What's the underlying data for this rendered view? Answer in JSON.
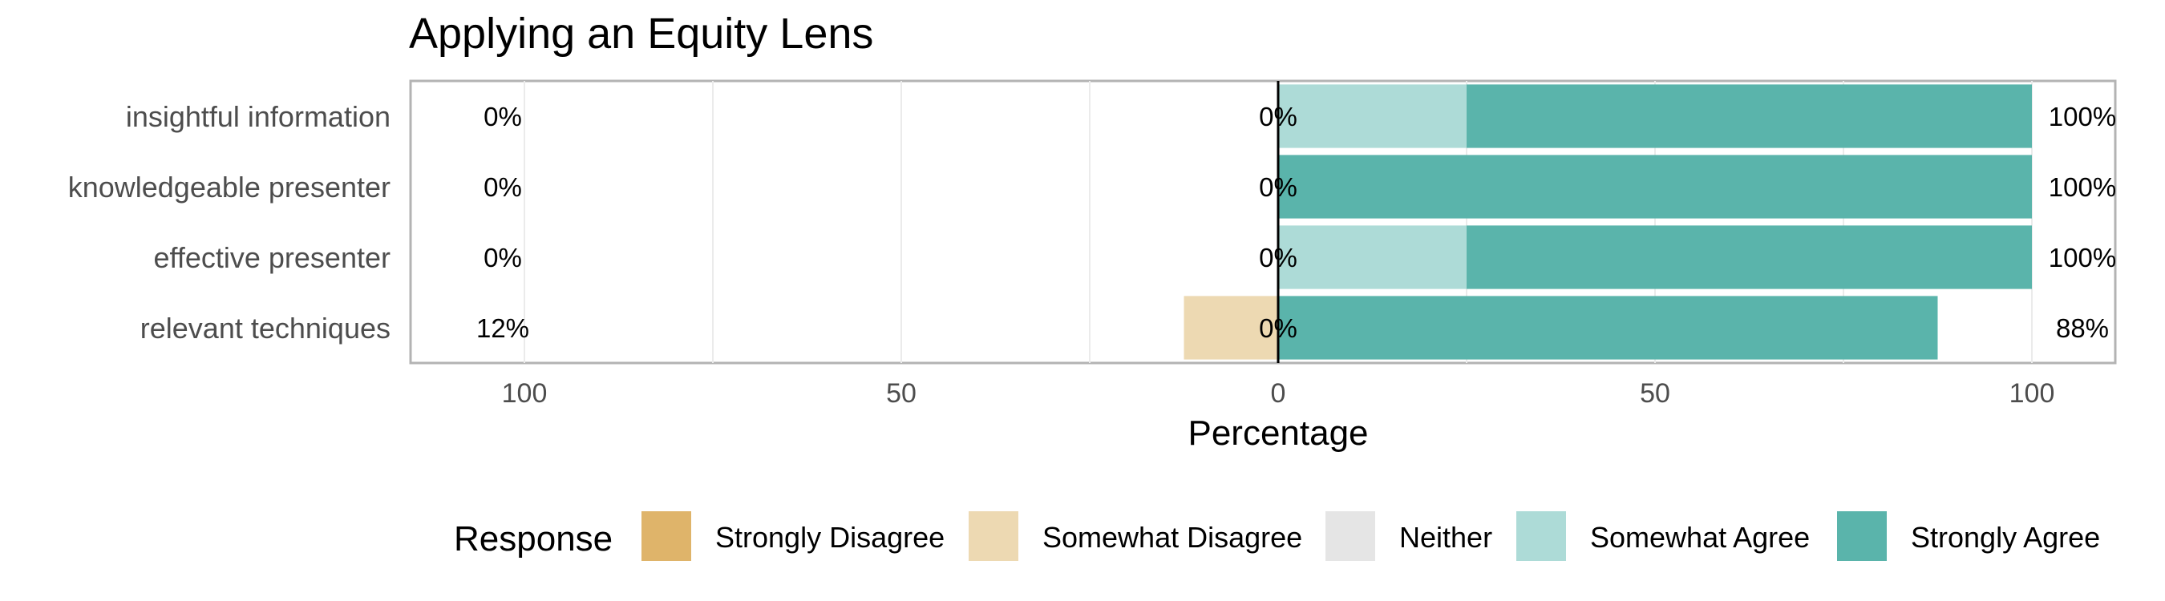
{
  "chart_data": {
    "type": "bar",
    "subtype": "diverging-stacked-horizontal",
    "title": "Applying an Equity Lens",
    "xlabel": "Percentage",
    "ylabel": "",
    "xlim": [
      -100,
      100
    ],
    "xticks": [
      -100,
      -50,
      0,
      50,
      100
    ],
    "xtick_labels": [
      "100",
      "50",
      "0",
      "50",
      "100"
    ],
    "grid": true,
    "categories": [
      "insightful information",
      "knowledgeable presenter",
      "effective presenter",
      "relevant techniques"
    ],
    "series": [
      {
        "name": "Strongly Disagree",
        "color": "#DFB46A",
        "values": [
          0,
          0,
          0,
          0
        ]
      },
      {
        "name": "Somewhat Disagree",
        "color": "#EDD9B2",
        "values": [
          0,
          0,
          0,
          12.5
        ]
      },
      {
        "name": "Neither",
        "color": "#E5E5E5",
        "values": [
          0,
          0,
          0,
          0
        ]
      },
      {
        "name": "Somewhat Agree",
        "color": "#ADDBD7",
        "values": [
          25,
          0,
          25,
          0
        ]
      },
      {
        "name": "Strongly Agree",
        "color": "#5AB4AB",
        "values": [
          75,
          100,
          75,
          87.5
        ]
      }
    ],
    "labels_left": [
      "0%",
      "0%",
      "0%",
      "12%"
    ],
    "labels_center": [
      "0%",
      "0%",
      "0%",
      "0%"
    ],
    "labels_right": [
      "100%",
      "100%",
      "100%",
      "88%"
    ],
    "legend": {
      "title": "Response",
      "position": "bottom"
    }
  }
}
